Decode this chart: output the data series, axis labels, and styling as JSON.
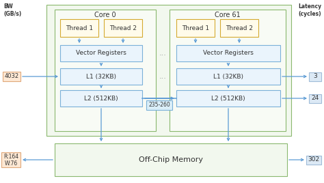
{
  "bg_color": "#ffffff",
  "outer_box_edge": "#8ab86e",
  "outer_box_face": "#f2f8ee",
  "core_box_edge": "#8ab86e",
  "core_box_face": "#f8fbf5",
  "thread_box_edge": "#d4aa30",
  "thread_box_face": "#fffbea",
  "inner_box_edge": "#7ab0d8",
  "inner_box_face": "#eaf4fc",
  "mem_box_edge": "#8ab86e",
  "mem_box_face": "#f2f8ee",
  "arrow_color": "#5b9bd5",
  "bw_box_edge": "#e0a87a",
  "bw_box_face": "#fde8d4",
  "lat_box_edge": "#a0bcd8",
  "lat_box_face": "#dce9f5",
  "ic_box_edge": "#7ab0d8",
  "ic_box_face": "#daeef8",
  "title_left": "BW\n(GB/s)",
  "title_right": "Latency\n(cycles)",
  "core0_label": "Core 0",
  "core61_label": "Core 61",
  "thread1_label": "Thread 1",
  "thread2_label": "Thread 2",
  "vec_reg_label": "Vector Registers",
  "l1_label": "L1 (32KB)",
  "l2_label": "L2 (512KB)",
  "mem_label": "Off-Chip Memory",
  "bw_l1": "4032",
  "lat_l1": "3",
  "lat_l2": "24",
  "lat_mem": "302",
  "bw_mem_r": "R:164",
  "bw_mem_w": "W:76",
  "dots_label": "...",
  "interconnect_label": "235-260",
  "text_color": "#555555",
  "dark_text": "#333333"
}
